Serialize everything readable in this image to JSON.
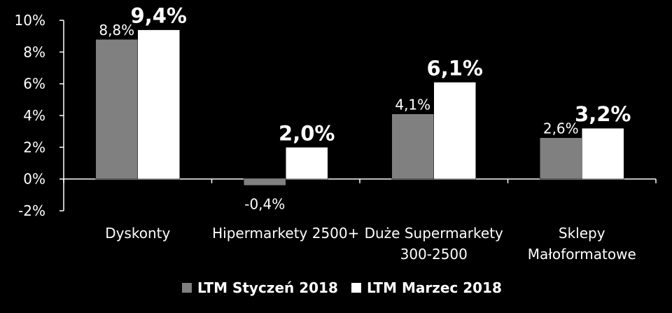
{
  "chart_data": {
    "type": "bar",
    "categories": [
      [
        "Dyskonty"
      ],
      [
        "Hipermarkety 2500+"
      ],
      [
        "Duże Supermarkety",
        "300-2500"
      ],
      [
        "Sklepy",
        "Małoformatowe"
      ]
    ],
    "series": [
      {
        "name": "LTM Styczeń 2018",
        "values": [
          8.8,
          -0.4,
          4.1,
          2.6
        ],
        "labels": [
          "8,8%",
          "-0,4%",
          "4,1%",
          "2,6%"
        ],
        "color": "#808080"
      },
      {
        "name": "LTM Marzec 2018",
        "values": [
          9.4,
          2.0,
          6.1,
          3.2
        ],
        "labels": [
          "9,4%",
          "2,0%",
          "6,1%",
          "3,2%"
        ],
        "color": "#ffffff"
      }
    ],
    "ylim": [
      -2,
      10
    ],
    "yticks": [
      10,
      8,
      6,
      4,
      2,
      0,
      -2
    ],
    "ytick_labels": [
      "10%",
      "8%",
      "6%",
      "4%",
      "2%",
      "0%",
      "-2%"
    ],
    "legend_position": "bottom",
    "title": "",
    "xlabel": "",
    "ylabel": ""
  },
  "colors": {
    "background": "#000000",
    "axis": "#ffffff",
    "text": "#ffffff"
  }
}
